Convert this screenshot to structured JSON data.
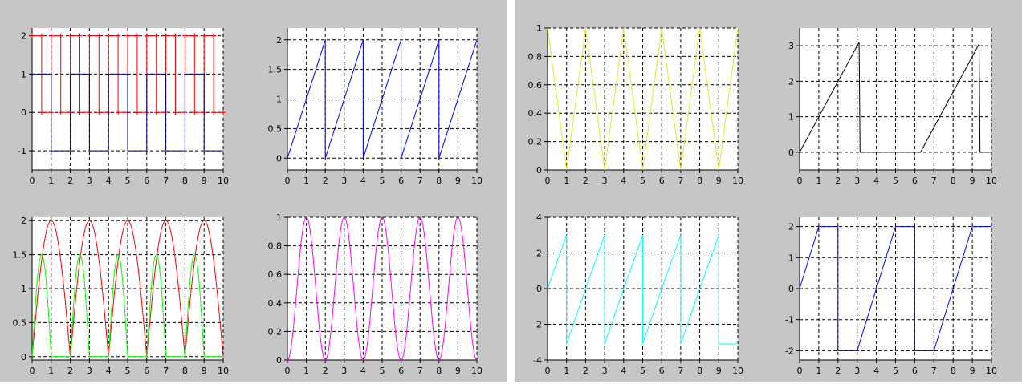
{
  "chart_data": [
    {
      "type": "line",
      "xlim": [
        0,
        10
      ],
      "ylim": [
        -1.5,
        2.2
      ],
      "xticks": [
        "0",
        "1",
        "2",
        "3",
        "4",
        "5",
        "6",
        "7",
        "8",
        "9",
        "10"
      ],
      "yticks": [
        -1,
        0,
        1,
        2
      ],
      "grid": true,
      "series": [
        {
          "color": "#ff0000",
          "marker": "plus",
          "x": [
            0,
            0.5,
            0.5,
            1,
            1,
            1.5,
            1.5,
            2,
            2,
            2.5,
            2.5,
            3,
            3,
            3.5,
            3.5,
            4,
            4,
            4.5,
            4.5,
            5,
            5,
            5.5,
            5.5,
            6,
            6,
            6.5,
            6.5,
            7,
            7,
            7.5,
            7.5,
            8,
            8,
            8.5,
            8.5,
            9,
            9,
            9.5,
            9.5,
            10
          ],
          "y": [
            2,
            2,
            0,
            0,
            2,
            2,
            0,
            0,
            2,
            2,
            0,
            0,
            2,
            2,
            0,
            0,
            2,
            2,
            0,
            0,
            2,
            2,
            0,
            0,
            2,
            2,
            0,
            0,
            2,
            2,
            0,
            0,
            2,
            2,
            0,
            0,
            2,
            2,
            0,
            0
          ]
        },
        {
          "color": "#000080",
          "x": [
            0,
            1,
            1,
            2,
            2,
            3,
            3,
            4,
            4,
            5,
            5,
            6,
            6,
            7,
            7,
            8,
            8,
            9,
            9,
            10
          ],
          "y": [
            1,
            1,
            -1,
            -1,
            1,
            1,
            -1,
            -1,
            1,
            1,
            -1,
            -1,
            1,
            1,
            -1,
            -1,
            1,
            1,
            -1,
            -1
          ]
        }
      ]
    },
    {
      "type": "line",
      "xlim": [
        0,
        10
      ],
      "ylim": [
        -0.2,
        2.2
      ],
      "xticks": [
        "0",
        "1",
        "2",
        "3",
        "4",
        "5",
        "6",
        "7",
        "8",
        "9",
        "10"
      ],
      "yticks": [
        0,
        0.5,
        1,
        1.5,
        2
      ],
      "grid": true,
      "series": [
        {
          "color": "#0000ff",
          "x": [
            0,
            2,
            2,
            4,
            4,
            6,
            6,
            8,
            8,
            10
          ],
          "y": [
            0,
            2,
            0,
            2,
            0,
            2,
            0,
            2,
            0,
            2
          ]
        }
      ]
    },
    {
      "type": "line",
      "xlim": [
        0,
        10
      ],
      "ylim": [
        -0.05,
        2.05
      ],
      "xticks": [
        "0",
        "1",
        "2",
        "3",
        "4",
        "5",
        "6",
        "7",
        "8",
        "9",
        "10"
      ],
      "yticks": [
        0,
        0.5,
        1,
        1.5,
        2
      ],
      "grid": true,
      "series": [
        {
          "color": "#ff0000",
          "fn": "abs2sin",
          "x": [
            0,
            10
          ]
        },
        {
          "color": "#00ff00",
          "fn": "halfsine",
          "x": [
            0,
            10
          ]
        }
      ]
    },
    {
      "type": "line",
      "xlim": [
        0,
        10
      ],
      "ylim": [
        0,
        1
      ],
      "xticks": [
        "0",
        "1",
        "2",
        "3",
        "4",
        "5",
        "6",
        "7",
        "8",
        "9",
        "10"
      ],
      "yticks": [
        0,
        0.2,
        0.4,
        0.6,
        0.8,
        1
      ],
      "grid": true,
      "series": [
        {
          "color": "#ff00ff",
          "fn": "sinesq",
          "x": [
            0,
            10
          ]
        }
      ]
    },
    {
      "type": "line",
      "xlim": [
        0,
        10
      ],
      "ylim": [
        0,
        1
      ],
      "xticks": [
        "0",
        "1",
        "2",
        "3",
        "4",
        "5",
        "6",
        "7",
        "8",
        "9",
        "10"
      ],
      "yticks": [
        0,
        0.2,
        0.4,
        0.6,
        0.8,
        1
      ],
      "grid": true,
      "series": [
        {
          "color": "#e5e52e",
          "x": [
            0,
            1,
            2,
            3,
            4,
            5,
            6,
            7,
            8,
            9,
            10
          ],
          "y": [
            1,
            0,
            1,
            0,
            1,
            0,
            1,
            0,
            1,
            0,
            1
          ]
        }
      ]
    },
    {
      "type": "line",
      "xlim": [
        0,
        10
      ],
      "ylim": [
        -0.5,
        3.5
      ],
      "xticks": [
        "0",
        "1",
        "2",
        "3",
        "4",
        "5",
        "6",
        "7",
        "8",
        "9",
        "10"
      ],
      "yticks": [
        0,
        1,
        2,
        3
      ],
      "grid": true,
      "series": [
        {
          "color": "#000000",
          "x": [
            0,
            3.1,
            3.15,
            6.3,
            9.35,
            9.4,
            10
          ],
          "y": [
            0,
            3.1,
            0,
            0,
            3.05,
            0,
            0
          ]
        }
      ]
    },
    {
      "type": "line",
      "xlim": [
        0,
        10
      ],
      "ylim": [
        -4,
        4
      ],
      "xticks": [
        "0",
        "1",
        "2",
        "3",
        "4",
        "5",
        "6",
        "7",
        "8",
        "9",
        "10"
      ],
      "yticks": [
        -4,
        -2,
        0,
        2,
        4
      ],
      "grid": true,
      "series": [
        {
          "color": "#00ffff",
          "x": [
            0,
            1,
            1,
            2,
            2,
            3,
            3,
            4,
            4,
            5,
            5,
            6,
            6,
            7,
            7,
            8,
            8,
            9,
            9,
            10
          ],
          "y": [
            0,
            3,
            -3.1,
            0,
            0,
            3,
            -3.1,
            0,
            0,
            3,
            -3.1,
            0,
            0,
            3,
            -3.1,
            0,
            0,
            3,
            -3.1,
            -3.1
          ]
        }
      ]
    },
    {
      "type": "line",
      "xlim": [
        0,
        10
      ],
      "ylim": [
        -2.3,
        2.3
      ],
      "xticks": [
        "0",
        "1",
        "2",
        "3",
        "4",
        "5",
        "6",
        "7",
        "8",
        "9",
        "10"
      ],
      "yticks": [
        -2,
        -1,
        0,
        1,
        2
      ],
      "grid": true,
      "series": [
        {
          "color": "#0000ff",
          "x": [
            0,
            1,
            2,
            2,
            3,
            5,
            6,
            6,
            7,
            9,
            10
          ],
          "y": [
            0,
            2,
            2,
            -2,
            -2,
            2,
            2,
            -2,
            -2,
            2,
            2
          ]
        }
      ]
    }
  ]
}
